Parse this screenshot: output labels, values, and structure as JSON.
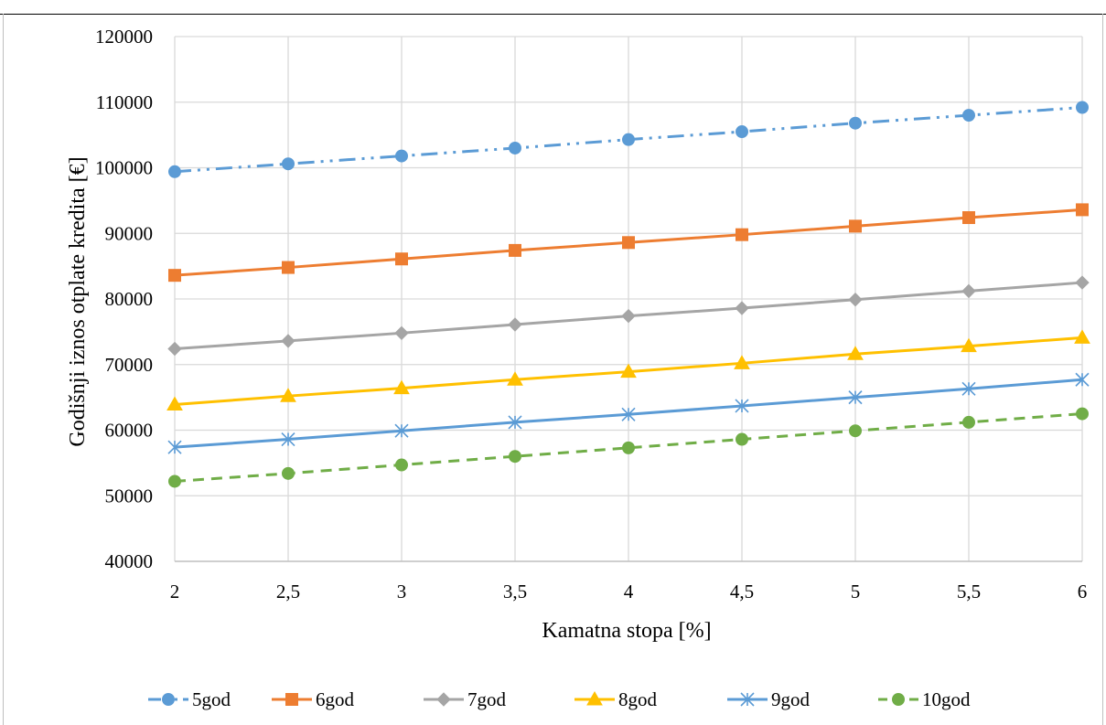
{
  "chart_data": {
    "type": "line",
    "title": "",
    "xlabel": "Kamatna stopa [%]",
    "ylabel": "Godišnji iznos otplate kredita [€]",
    "categories": [
      "2",
      "2,5",
      "3",
      "3,5",
      "4",
      "4,5",
      "5",
      "5,5",
      "6"
    ],
    "x": [
      2,
      2.5,
      3,
      3.5,
      4,
      4.5,
      5,
      5.5,
      6
    ],
    "xlim": [
      2,
      6
    ],
    "ylim": [
      40000,
      120000
    ],
    "yticks": [
      40000,
      50000,
      60000,
      70000,
      80000,
      90000,
      100000,
      110000,
      120000
    ],
    "grid": true,
    "legend_position": "bottom",
    "series": [
      {
        "name": "5god",
        "color": "#5b9bd5",
        "marker": "circle",
        "dash": "long-dash-dot-dot",
        "values": [
          99400,
          100600,
          101800,
          103000,
          104300,
          105500,
          106800,
          108000,
          109200
        ]
      },
      {
        "name": "6god",
        "color": "#ed7d31",
        "marker": "square",
        "dash": "solid",
        "values": [
          83600,
          84800,
          86100,
          87400,
          88600,
          89800,
          91100,
          92400,
          93600
        ]
      },
      {
        "name": "7god",
        "color": "#a5a5a5",
        "marker": "diamond",
        "dash": "solid",
        "values": [
          72400,
          73600,
          74800,
          76100,
          77400,
          78600,
          79900,
          81200,
          82500
        ]
      },
      {
        "name": "8god",
        "color": "#ffc000",
        "marker": "triangle",
        "dash": "solid",
        "values": [
          63900,
          65200,
          66400,
          67700,
          68900,
          70200,
          71600,
          72800,
          74100
        ]
      },
      {
        "name": "9god",
        "color": "#5b9bd5",
        "marker": "asterisk",
        "dash": "solid",
        "values": [
          57400,
          58600,
          59900,
          61200,
          62400,
          63700,
          65000,
          66300,
          67700
        ]
      },
      {
        "name": "10god",
        "color": "#70ad47",
        "marker": "circle",
        "dash": "dashed",
        "values": [
          52200,
          53400,
          54700,
          56000,
          57300,
          58600,
          59900,
          61200,
          62500
        ]
      }
    ]
  }
}
